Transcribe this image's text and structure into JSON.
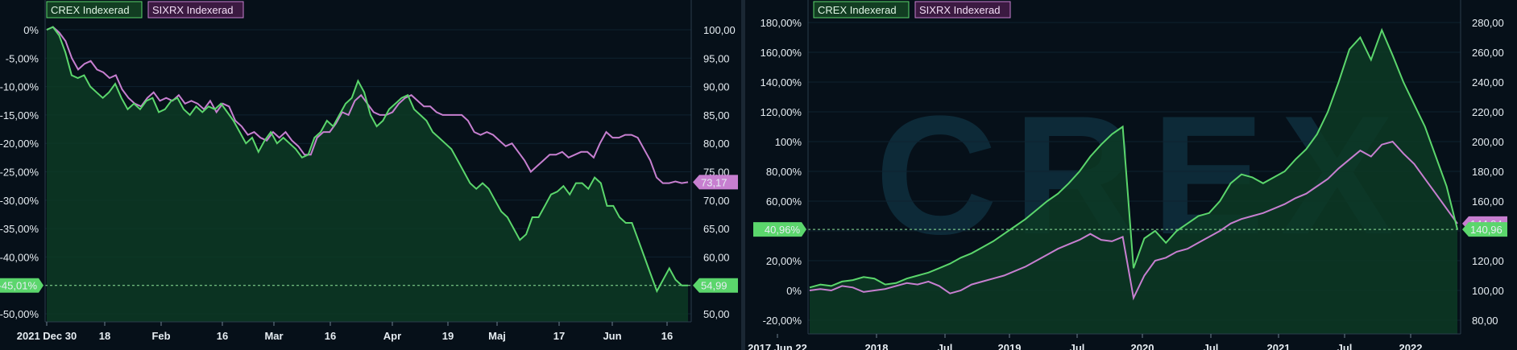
{
  "colors": {
    "crex": "#5bd66c",
    "sixrx": "#c77fd0",
    "fill": "#0d3a24",
    "background": "#061019",
    "grid": "#0f2230"
  },
  "chart_data": [
    {
      "type": "line",
      "title": "",
      "legend": [
        "CREX Indexerad",
        "SIXRX Indexerad"
      ],
      "x_ticks": [
        "2021 Dec 30",
        "18",
        "Feb",
        "16",
        "Mar",
        "16",
        "Apr",
        "19",
        "Maj",
        "17",
        "Jun",
        "16"
      ],
      "y_left_ticks": [
        "0%",
        "-5,00%",
        "-10,00%",
        "-15,00%",
        "-20,00%",
        "-25,00%",
        "-30,00%",
        "-35,00%",
        "-40,00%",
        "-45,00%",
        "-50,00%"
      ],
      "y_left_range": [
        -50,
        0
      ],
      "y_right_ticks": [
        "100,00",
        "95,00",
        "90,00",
        "85,00",
        "80,00",
        "75,00",
        "70,00",
        "65,00",
        "60,00",
        "55,00",
        "50,00"
      ],
      "y_right_range": [
        50,
        100
      ],
      "last_values": {
        "crex_pct": "-45,01%",
        "crex": "54,99",
        "sixrx": "73,17"
      },
      "series": [
        {
          "name": "CREX Indexerad",
          "values": [
            100,
            100.5,
            99,
            96,
            92,
            91.5,
            92,
            90,
            89,
            88,
            89,
            90.5,
            88,
            86,
            87,
            86,
            87.5,
            88,
            85.5,
            86,
            87.5,
            88,
            86,
            85,
            86.5,
            85.5,
            86.5,
            86,
            87,
            85.5,
            84,
            82,
            80,
            81,
            78.5,
            80.5,
            82,
            80,
            81,
            80,
            79,
            77.5,
            78,
            81,
            82,
            84,
            83,
            85,
            87,
            88,
            91,
            89,
            85,
            83,
            84,
            86,
            87,
            88,
            88.5,
            86,
            85,
            84,
            82,
            81,
            80,
            79,
            77,
            75,
            73,
            72,
            73,
            72,
            70,
            68,
            67,
            65,
            63,
            64,
            67,
            67,
            69,
            71,
            71.5,
            72.5,
            71,
            73,
            73,
            72,
            74,
            73,
            69,
            69,
            67,
            66,
            66,
            63,
            60,
            57,
            54,
            56,
            58,
            56,
            55,
            55
          ]
        },
        {
          "name": "SIXRX Indexerad",
          "values": [
            100,
            100.5,
            99.5,
            98,
            95,
            93,
            94,
            94.5,
            93,
            92.5,
            91.5,
            92,
            89.5,
            88,
            87,
            86.5,
            88,
            89,
            87.5,
            88,
            87.5,
            88.5,
            87,
            87.5,
            87,
            86,
            87.5,
            85.5,
            87,
            86.5,
            84,
            83,
            81.5,
            82,
            81,
            80.5,
            82,
            81,
            82,
            80.5,
            79.5,
            78,
            78,
            81,
            82,
            82,
            83.5,
            85.5,
            85,
            87.5,
            88.5,
            87,
            85.5,
            85,
            85,
            85.5,
            87,
            88,
            88.5,
            87.5,
            86.5,
            86.5,
            85.5,
            85,
            85,
            85,
            85,
            84,
            82,
            81.5,
            82,
            81.5,
            80.5,
            79.5,
            80,
            78.5,
            77,
            75,
            76,
            77,
            78,
            78,
            78.5,
            77.5,
            78,
            78.5,
            78.5,
            77.5,
            80,
            82,
            81,
            81,
            81.5,
            81.5,
            81,
            79,
            77,
            74,
            73,
            73,
            73.3,
            73,
            73.17
          ]
        }
      ]
    },
    {
      "type": "line",
      "title": "",
      "watermark": "CREX",
      "legend": [
        "CREX Indexerad",
        "SIXRX Indexerad"
      ],
      "x_ticks": [
        "2017 Jun 22",
        "2018",
        "Jul",
        "2019",
        "Jul",
        "2020",
        "Jul",
        "2021",
        "Jul",
        "2022"
      ],
      "y_left_ticks": [
        "180,00%",
        "160,00%",
        "140,00%",
        "120,00%",
        "100%",
        "80,00%",
        "60,00%",
        "40,00%",
        "20,00%",
        "0%",
        "-20,00%"
      ],
      "y_left_range": [
        -20,
        180
      ],
      "y_right_ticks": [
        "280,00",
        "260,00",
        "240,00",
        "220,00",
        "200,00",
        "180,00",
        "160,00",
        "140,00",
        "120,00",
        "100,00",
        "80,00"
      ],
      "y_right_range": [
        80,
        280
      ],
      "last_values": {
        "crex_pct": "40,96%",
        "crex": "140,96",
        "sixrx": "144,94"
      },
      "series": [
        {
          "name": "CREX Indexerad",
          "values": [
            102,
            104,
            103,
            106,
            107,
            109,
            108,
            104,
            105,
            108,
            110,
            112,
            115,
            118,
            122,
            125,
            129,
            133,
            138,
            143,
            148,
            154,
            160,
            165,
            172,
            180,
            190,
            198,
            205,
            210,
            115,
            135,
            140,
            132,
            140,
            145,
            150,
            152,
            160,
            172,
            178,
            176,
            172,
            176,
            180,
            188,
            195,
            205,
            220,
            240,
            262,
            270,
            255,
            275,
            258,
            240,
            225,
            210,
            190,
            170,
            141
          ]
        },
        {
          "name": "SIXRX Indexerad",
          "values": [
            100,
            101,
            100,
            103,
            102,
            99,
            100,
            101,
            103,
            105,
            104,
            106,
            103,
            98,
            100,
            104,
            106,
            108,
            110,
            113,
            116,
            120,
            124,
            128,
            131,
            134,
            138,
            134,
            133,
            136,
            95,
            110,
            120,
            122,
            126,
            128,
            132,
            136,
            140,
            145,
            148,
            150,
            152,
            155,
            158,
            162,
            165,
            170,
            175,
            182,
            188,
            194,
            190,
            198,
            200,
            192,
            185,
            175,
            165,
            155,
            144.94
          ]
        }
      ]
    }
  ]
}
